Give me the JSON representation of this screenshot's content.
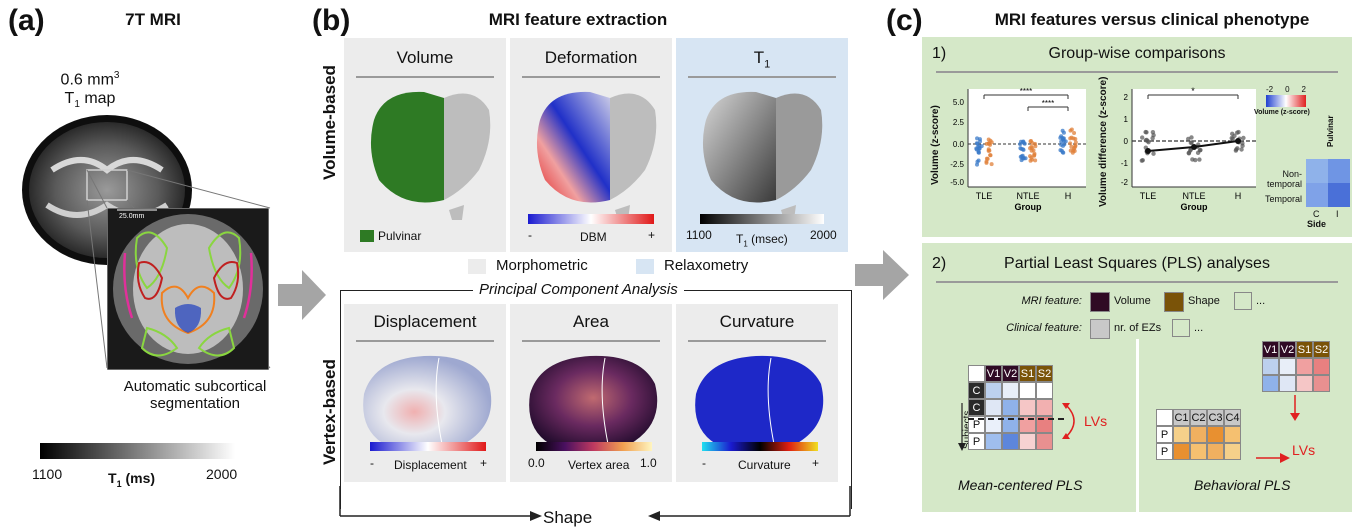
{
  "panel_a": {
    "label": "(a)",
    "title": "7T MRI",
    "voxel_size": "0.6 mm",
    "voxel_exp": "3",
    "map_label": "T",
    "map_sub": "1",
    "map_suffix": " map",
    "scale_bar": "25.0mm",
    "caption_line1": "Automatic subcortical",
    "caption_line2": "segmentation",
    "cbar_min": "1100",
    "cbar_max": "2000",
    "cbar_label": "T",
    "cbar_label_sub": "1",
    "cbar_label_unit": " (ms)"
  },
  "panel_b": {
    "label": "(b)",
    "title": "MRI feature extraction",
    "row1_label": "Volume-based",
    "row2_label": "Vertex-based",
    "volume_title": "Volume",
    "pulvinar_legend": "Pulvinar",
    "deformation_title": "Deformation",
    "dbm_label": "DBM",
    "dbm_minus": "-",
    "dbm_plus": "+",
    "t1_title": "T",
    "t1_title_sub": "1",
    "t1_min": "1100",
    "t1_max": "2000",
    "t1_label": "T",
    "t1_label_sub": "1",
    "t1_label_unit": " (msec)",
    "legend_morpho": "Morphometric",
    "legend_relax": "Relaxometry",
    "pca_title": "Principal Component Analysis",
    "displacement_title": "Displacement",
    "displacement_label": "Displacement",
    "area_title": "Area",
    "area_min": "0.0",
    "area_label": "Vertex area",
    "area_max": "1.0",
    "curvature_title": "Curvature",
    "curvature_label": "Curvature",
    "minus": "-",
    "plus": "+",
    "shape_label": "Shape"
  },
  "panel_c": {
    "label": "(c)",
    "title": "MRI features versus clinical phenotype",
    "sec1_num": "1)",
    "sec1_title": "Group-wise comparisons",
    "plot1": {
      "ylabel": "Volume (z-score)",
      "yticks": [
        "5.0",
        "2.5",
        "0.0",
        "-2.5",
        "-5.0"
      ],
      "xticks": [
        "TLE",
        "NTLE",
        "H"
      ],
      "xlabel": "Group",
      "sig_outer": "****",
      "sig_inner": "****"
    },
    "plot2": {
      "ylabel": "Volume difference (z-score)",
      "yticks": [
        "2",
        "1",
        "0",
        "-1",
        "-2"
      ],
      "xticks": [
        "TLE",
        "NTLE",
        "H"
      ],
      "xlabel": "Group",
      "sig": "*"
    },
    "heatmap": {
      "cbar_ticks": [
        "-2",
        "0",
        "2"
      ],
      "cbar_label": "Volume (z-score)",
      "col_header": "Pulvinar",
      "rows": [
        "Non-temporal",
        "Temporal"
      ],
      "cols": [
        "C",
        "I"
      ],
      "xlabel": "Side",
      "colors": [
        [
          "#8fb2ea",
          "#6f95e4"
        ],
        [
          "#7fa2e8",
          "#4a70d8"
        ]
      ]
    },
    "sec2_num": "2)",
    "sec2_title": "Partial Least Squares (PLS) analyses",
    "mri_feature_label": "MRI feature:",
    "mri_volume": "Volume",
    "mri_shape": "Shape",
    "ellipsis": "...",
    "clinical_feature_label": "Clinical feature:",
    "clinical_ez": "nr. of EZs",
    "subjects_label": "Subjects",
    "lvs": "LVs",
    "mc_cols": [
      "V1",
      "V2",
      "S1",
      "S2"
    ],
    "mc_rows": [
      "C",
      "C",
      "P",
      "P"
    ],
    "mc_caption": "Mean-centered PLS",
    "bh_cols": [
      "V1",
      "V2",
      "S1",
      "S2"
    ],
    "bh_ccols": [
      "C1",
      "C2",
      "C3",
      "C4"
    ],
    "bh_rows": [
      "P",
      "P"
    ],
    "bh_caption": "Behavioral PLS",
    "colors": {
      "volume": "#2f0a24",
      "shape": "#7a5308",
      "gray": "#c8c8c8",
      "green_bg": "#d5e8c8"
    }
  }
}
